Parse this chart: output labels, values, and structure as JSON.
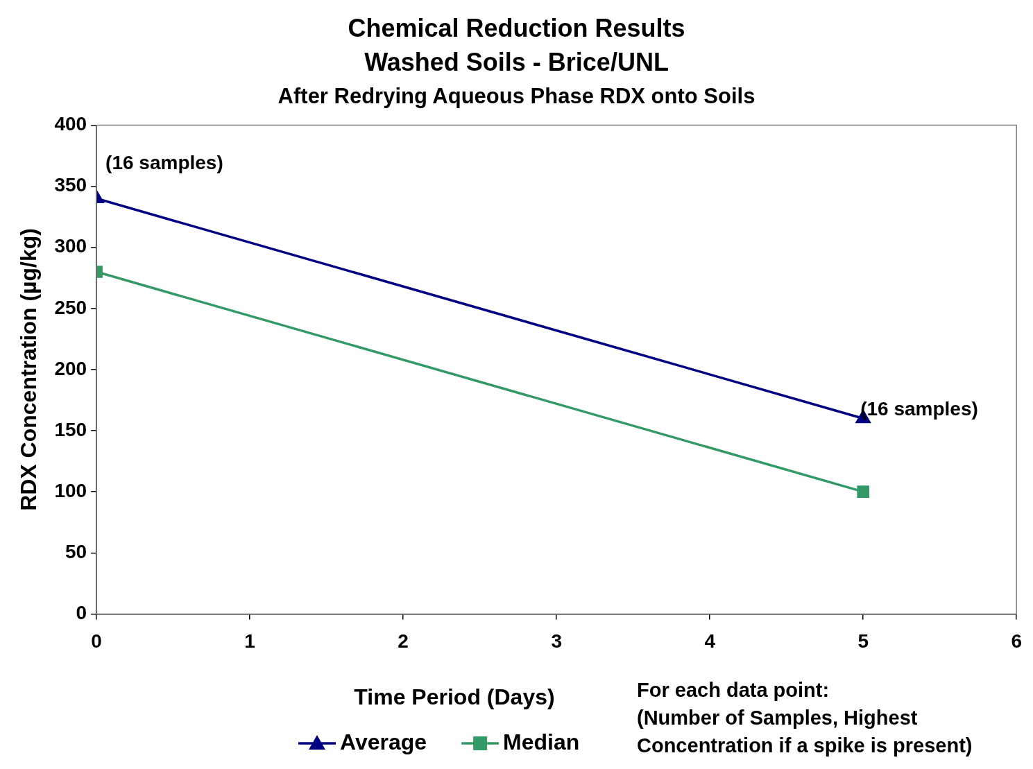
{
  "chart_data": {
    "type": "line",
    "title": "Chemical Reduction Results\nWashed Soils - Brice/UNL",
    "subtitle": "After Redrying Aqueous Phase RDX onto Soils",
    "xlabel": "Time Period (Days)",
    "ylabel": "RDX Concentration (µg/kg)",
    "x": [
      0,
      5
    ],
    "series": [
      {
        "name": "Average",
        "color": "#000080",
        "values": [
          340,
          160
        ],
        "marker": "triangle"
      },
      {
        "name": "Median",
        "color": "#339966",
        "values": [
          280,
          100
        ],
        "marker": "square"
      }
    ],
    "xlim": [
      0,
      6
    ],
    "xticks": [
      0,
      1,
      2,
      3,
      4,
      5,
      6
    ],
    "ylim": [
      0,
      400
    ],
    "yticks": [
      0,
      50,
      100,
      150,
      200,
      250,
      300,
      350,
      400
    ],
    "grid": false,
    "legend": "bottom",
    "line_style": "solid",
    "annotations": [
      {
        "text": "(16 samples)",
        "x": 0,
        "y": 340
      },
      {
        "text": "(16 samples)",
        "x": 5,
        "y": 160
      },
      "For each data point:\n(Number of Samples, Highest\nConcentration if a spike is present)"
    ]
  }
}
